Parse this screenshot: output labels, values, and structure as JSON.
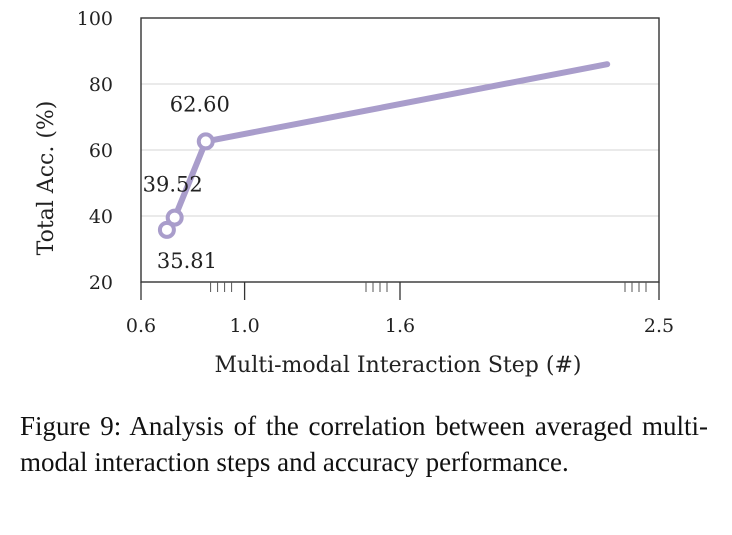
{
  "chart_data": {
    "type": "line",
    "xlabel": "Multi-modal Interaction Step (#)",
    "ylabel": "Total Acc. (%)",
    "xticks": [
      "0.6",
      "1.0",
      "1.6",
      "2.5"
    ],
    "yticks": [
      "20",
      "40",
      "60",
      "80",
      "100"
    ],
    "xlim": [
      0.6,
      2.6
    ],
    "ylim": [
      20,
      100
    ],
    "grid": "horizontal",
    "line_color": "#a99dcb",
    "series": [
      {
        "values": [
          {
            "x": 0.7,
            "y": 35.81,
            "label": "35.81",
            "marker": true
          },
          {
            "x": 0.73,
            "y": 39.52,
            "label": "39.52",
            "marker": true
          },
          {
            "x": 0.85,
            "y": 62.6,
            "label": "62.60",
            "marker": true
          },
          {
            "x": 2.4,
            "y": 86.0,
            "label": "",
            "marker": false
          }
        ]
      }
    ]
  },
  "caption": "Figure 9: Analysis of the correlation between averaged multi-modal interaction steps and accuracy performance."
}
